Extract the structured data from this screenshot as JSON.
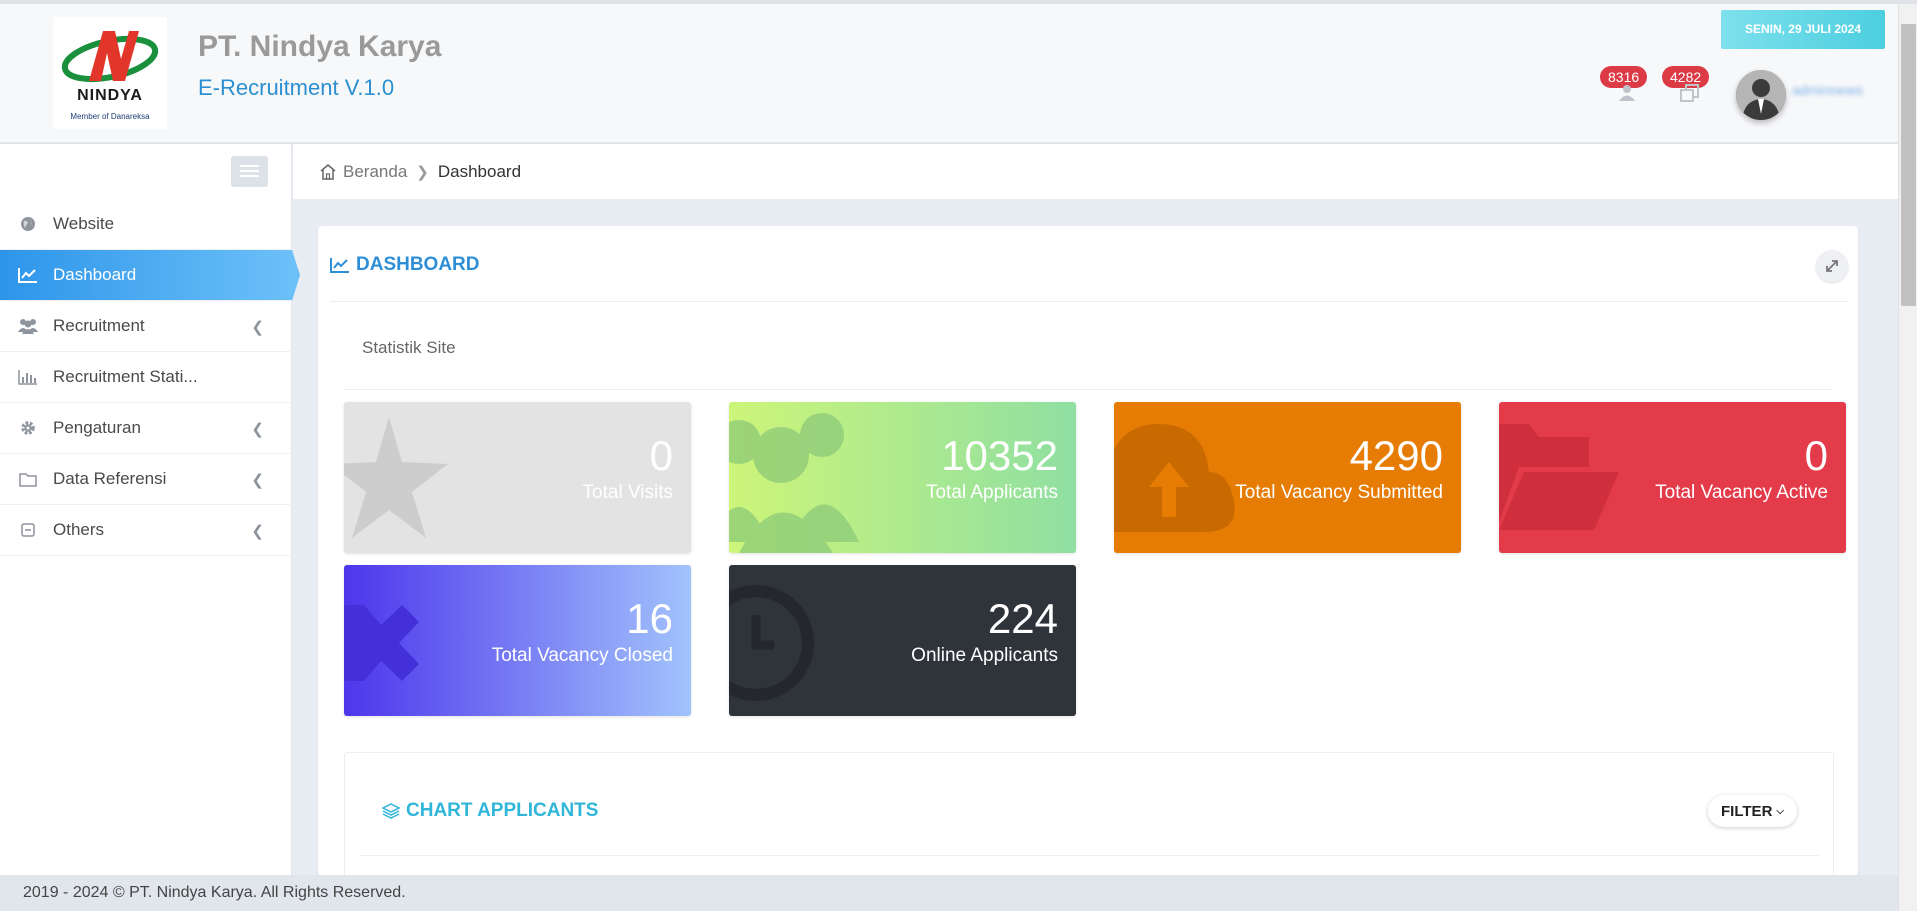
{
  "header": {
    "logo_text": "NINDYA",
    "logo_member": "Member of Danareksa",
    "company": "PT. Nindya Karya",
    "app_name": "E-Recruitment V.1.0",
    "date": "SENIN, 29 JULI 2024",
    "notif_users": "8316",
    "notif_docs": "4282",
    "username": "adminnews"
  },
  "sidebar": {
    "items": [
      {
        "label": "Website",
        "icon": "globe-icon"
      },
      {
        "label": "Dashboard",
        "icon": "line-chart-icon"
      },
      {
        "label": "Recruitment",
        "icon": "users-icon"
      },
      {
        "label": "Recruitment Stati...",
        "icon": "bar-chart-icon"
      },
      {
        "label": "Pengaturan",
        "icon": "gear-icon"
      },
      {
        "label": "Data Referensi",
        "icon": "folder-icon"
      },
      {
        "label": "Others",
        "icon": "minus-square-icon"
      }
    ]
  },
  "breadcrumb": {
    "home": "Beranda",
    "current": "Dashboard"
  },
  "dashboard": {
    "title": "DASHBOARD",
    "stat_heading": "Statistik Site",
    "tiles": [
      {
        "value": "0",
        "label": "Total Visits",
        "icon": "star-icon"
      },
      {
        "value": "10352",
        "label": "Total Applicants",
        "icon": "users-icon"
      },
      {
        "value": "4290",
        "label": "Total Vacancy Submitted",
        "icon": "cloud-upload-icon"
      },
      {
        "value": "0",
        "label": "Total Vacancy Active",
        "icon": "folder-open-icon"
      },
      {
        "value": "16",
        "label": "Total Vacancy Closed",
        "icon": "close-icon"
      },
      {
        "value": "224",
        "label": "Online Applicants",
        "icon": "clock-icon"
      }
    ],
    "chart_title": "CHART APPLICANTS",
    "filter_label": "FILTER"
  },
  "footer": {
    "text": "2019 - 2024 © PT. Nindya Karya. All Rights Reserved."
  },
  "colors": {
    "accent": "#2f8fd6",
    "sidebar_active": "#2d95ea",
    "tile_visits": "#e3e3e3",
    "tile_applicants": "#a8e98e",
    "tile_submitted": "#e77c05",
    "tile_active": "#e33b4a",
    "tile_closed": "#6f6cf2",
    "tile_online": "#2f333a"
  }
}
